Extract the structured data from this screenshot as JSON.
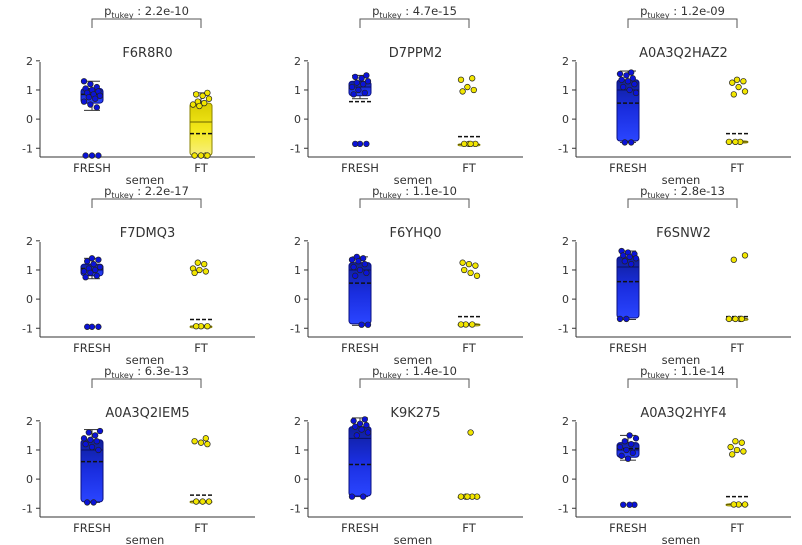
{
  "figure": {
    "x_axis_label": "semen",
    "group_labels": [
      "FRESH",
      "FT"
    ],
    "stat_label": "tukey",
    "colors": {
      "fresh": "#0a12d8",
      "ft": "#f2e600",
      "axis": "#333333"
    }
  },
  "chart_data": [
    {
      "type": "box",
      "title": "F6R8R0",
      "pvalue": "2.2e-10",
      "xlabel": "semen",
      "ylabel": "",
      "ylim": [
        -1.3,
        2.2
      ],
      "yticks": [
        -1,
        0,
        1,
        2
      ],
      "categories": [
        "FRESH",
        "FT"
      ],
      "series": [
        {
          "category": "FRESH",
          "min": 0.3,
          "q1": 0.55,
          "median": 0.85,
          "q3": 1.05,
          "max": 1.3,
          "mean": 0.85,
          "points": [
            1.3,
            1.2,
            1.1,
            1.05,
            1.0,
            0.95,
            0.9,
            0.85,
            0.8,
            0.75,
            0.7,
            0.6,
            0.5,
            0.4,
            -1.25,
            -1.25,
            -1.25
          ]
        },
        {
          "category": "FT",
          "min": -1.3,
          "q1": -1.25,
          "median": -0.1,
          "q3": 0.55,
          "max": 0.9,
          "mean": -0.5,
          "points": [
            0.9,
            0.85,
            0.8,
            0.7,
            0.6,
            0.55,
            0.5,
            0.45,
            -1.25,
            -1.25,
            -1.25,
            -1.25
          ]
        }
      ]
    },
    {
      "type": "box",
      "title": "D7PPM2",
      "pvalue": "4.7e-15",
      "xlabel": "semen",
      "ylabel": "",
      "ylim": [
        -1.3,
        2.2
      ],
      "yticks": [
        -1,
        0,
        1,
        2
      ],
      "categories": [
        "FRESH",
        "FT"
      ],
      "series": [
        {
          "category": "FRESH",
          "min": 0.7,
          "q1": 0.8,
          "median": 1.1,
          "q3": 1.3,
          "max": 1.5,
          "mean": 0.6,
          "points": [
            1.5,
            1.45,
            1.4,
            1.3,
            1.25,
            1.2,
            1.1,
            1.0,
            0.9,
            0.85,
            -0.85,
            -0.85,
            -0.85
          ]
        },
        {
          "category": "FT",
          "min": -0.9,
          "q1": -0.88,
          "median": -0.87,
          "q3": -0.85,
          "max": -0.85,
          "mean": -0.6,
          "points": [
            1.4,
            1.35,
            1.1,
            1.0,
            0.95,
            -0.85,
            -0.85,
            -0.85,
            -0.85
          ]
        }
      ]
    },
    {
      "type": "box",
      "title": "A0A3Q2HAZ2",
      "pvalue": "1.2e-09",
      "xlabel": "semen",
      "ylabel": "",
      "ylim": [
        -1.3,
        2.2
      ],
      "yticks": [
        -1,
        0,
        1,
        2
      ],
      "categories": [
        "FRESH",
        "FT"
      ],
      "series": [
        {
          "category": "FRESH",
          "min": -0.8,
          "q1": -0.75,
          "median": 1.0,
          "q3": 1.35,
          "max": 1.65,
          "mean": 0.55,
          "points": [
            1.6,
            1.55,
            1.5,
            1.4,
            1.35,
            1.3,
            1.2,
            1.1,
            1.0,
            0.9,
            -0.8,
            -0.8
          ]
        },
        {
          "category": "FT",
          "min": -0.8,
          "q1": -0.8,
          "median": -0.78,
          "q3": -0.75,
          "max": -0.75,
          "mean": -0.5,
          "points": [
            1.35,
            1.3,
            1.25,
            1.1,
            0.95,
            0.85,
            -0.78,
            -0.78,
            -0.78
          ]
        }
      ]
    },
    {
      "type": "box",
      "title": "F7DMQ3",
      "pvalue": "2.2e-17",
      "xlabel": "semen",
      "ylabel": "",
      "ylim": [
        -1.3,
        2.2
      ],
      "yticks": [
        -1,
        0,
        1,
        2
      ],
      "categories": [
        "FRESH",
        "FT"
      ],
      "series": [
        {
          "category": "FRESH",
          "min": 0.7,
          "q1": 0.8,
          "median": 1.0,
          "q3": 1.2,
          "max": 1.4,
          "mean": 1.05,
          "points": [
            1.4,
            1.35,
            1.3,
            1.2,
            1.1,
            1.05,
            1.0,
            0.95,
            0.9,
            0.8,
            0.75,
            -0.95,
            -0.95,
            -0.95
          ]
        },
        {
          "category": "FT",
          "min": -0.95,
          "q1": -0.95,
          "median": -0.93,
          "q3": -0.92,
          "max": -0.9,
          "mean": -0.7,
          "points": [
            1.25,
            1.2,
            1.05,
            1.0,
            0.95,
            0.9,
            -0.93,
            -0.93,
            -0.93
          ]
        }
      ]
    },
    {
      "type": "box",
      "title": "F6YHQ0",
      "pvalue": "1.1e-10",
      "xlabel": "semen",
      "ylabel": "",
      "ylim": [
        -1.3,
        2.2
      ],
      "yticks": [
        -1,
        0,
        1,
        2
      ],
      "categories": [
        "FRESH",
        "FT"
      ],
      "series": [
        {
          "category": "FRESH",
          "min": -0.9,
          "q1": -0.85,
          "median": 1.0,
          "q3": 1.25,
          "max": 1.45,
          "mean": 0.55,
          "points": [
            1.45,
            1.4,
            1.35,
            1.3,
            1.2,
            1.1,
            1.0,
            0.9,
            0.8,
            -0.88,
            -0.88
          ]
        },
        {
          "category": "FT",
          "min": -0.9,
          "q1": -0.88,
          "median": -0.87,
          "q3": -0.85,
          "max": -0.85,
          "mean": -0.6,
          "points": [
            1.25,
            1.2,
            1.15,
            1.0,
            0.9,
            0.8,
            -0.87,
            -0.87,
            -0.87
          ]
        }
      ]
    },
    {
      "type": "box",
      "title": "F6SNW2",
      "pvalue": "2.8e-13",
      "xlabel": "semen",
      "ylabel": "",
      "ylim": [
        -1.3,
        2.2
      ],
      "yticks": [
        -1,
        0,
        1,
        2
      ],
      "categories": [
        "FRESH",
        "FT"
      ],
      "series": [
        {
          "category": "FRESH",
          "min": -0.7,
          "q1": -0.65,
          "median": 1.1,
          "q3": 1.45,
          "max": 1.65,
          "mean": 0.6,
          "points": [
            1.65,
            1.6,
            1.55,
            1.5,
            1.45,
            1.4,
            1.3,
            1.2,
            -0.68,
            -0.68
          ]
        },
        {
          "category": "FT",
          "min": -0.72,
          "q1": -0.7,
          "median": -0.68,
          "q3": -0.66,
          "max": -0.65,
          "mean": -0.6,
          "points": [
            1.5,
            1.35,
            -0.68,
            -0.68,
            -0.68,
            -0.68
          ]
        }
      ]
    },
    {
      "type": "box",
      "title": "A0A3Q2IEM5",
      "pvalue": "6.3e-13",
      "xlabel": "semen",
      "ylabel": "",
      "ylim": [
        -1.3,
        2.2
      ],
      "yticks": [
        -1,
        0,
        1,
        2
      ],
      "categories": [
        "FRESH",
        "FT"
      ],
      "series": [
        {
          "category": "FRESH",
          "min": -0.8,
          "q1": -0.78,
          "median": 1.0,
          "q3": 1.35,
          "max": 1.7,
          "mean": 0.6,
          "points": [
            1.65,
            1.6,
            1.5,
            1.4,
            1.35,
            1.3,
            1.2,
            1.1,
            1.0,
            -0.8,
            -0.8
          ]
        },
        {
          "category": "FT",
          "min": -0.8,
          "q1": -0.78,
          "median": -0.77,
          "q3": -0.75,
          "max": -0.75,
          "mean": -0.55,
          "points": [
            1.4,
            1.3,
            1.25,
            1.2,
            -0.77,
            -0.77,
            -0.77
          ]
        }
      ]
    },
    {
      "type": "box",
      "title": "K9K275",
      "pvalue": "1.4e-10",
      "xlabel": "semen",
      "ylabel": "",
      "ylim": [
        -1.3,
        2.2
      ],
      "yticks": [
        -1,
        0,
        1,
        2
      ],
      "categories": [
        "FRESH",
        "FT"
      ],
      "series": [
        {
          "category": "FRESH",
          "min": -0.6,
          "q1": -0.58,
          "median": 1.4,
          "q3": 1.8,
          "max": 2.1,
          "mean": 0.5,
          "points": [
            2.05,
            2.0,
            1.9,
            1.85,
            1.8,
            1.7,
            1.6,
            1.5,
            -0.6,
            -0.6
          ]
        },
        {
          "category": "FT",
          "min": -0.62,
          "q1": -0.61,
          "median": -0.6,
          "q3": -0.59,
          "max": -0.58,
          "mean": -0.6,
          "points": [
            1.6,
            -0.6,
            -0.6,
            -0.6,
            -0.6,
            -0.6
          ]
        }
      ]
    },
    {
      "type": "box",
      "title": "A0A3Q2HYF4",
      "pvalue": "1.1e-14",
      "xlabel": "semen",
      "ylabel": "",
      "ylim": [
        -1.3,
        2.2
      ],
      "yticks": [
        -1,
        0,
        1,
        2
      ],
      "categories": [
        "FRESH",
        "FT"
      ],
      "series": [
        {
          "category": "FRESH",
          "min": 0.65,
          "q1": 0.75,
          "median": 1.0,
          "q3": 1.25,
          "max": 1.5,
          "mean": 1.05,
          "points": [
            1.5,
            1.4,
            1.3,
            1.2,
            1.1,
            1.0,
            0.9,
            0.8,
            0.7,
            -0.88,
            -0.88,
            -0.88
          ]
        },
        {
          "category": "FT",
          "min": -0.9,
          "q1": -0.88,
          "median": -0.87,
          "q3": -0.85,
          "max": -0.85,
          "mean": -0.6,
          "points": [
            1.3,
            1.25,
            1.1,
            1.0,
            0.95,
            0.85,
            -0.87,
            -0.87,
            -0.87
          ]
        }
      ]
    }
  ]
}
